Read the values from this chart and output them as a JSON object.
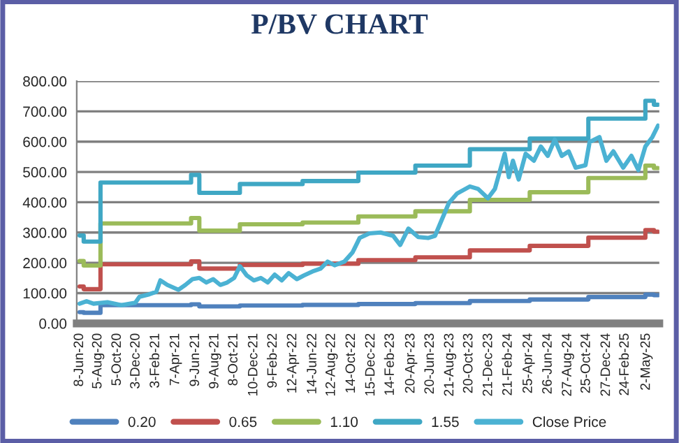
{
  "chart_data": {
    "type": "line",
    "title": "P/BV CHART",
    "series": [
      {
        "name": "0.20",
        "type": "step",
        "color": "#4f81bd",
        "x": [
          "2020-06-08",
          "2020-06-21",
          "2020-08-13",
          "2021-05-26",
          "2021-06-21",
          "2021-10-27",
          "2022-05-13",
          "2022-11-05",
          "2023-05-04",
          "2023-10-23",
          "2024-04-29",
          "2024-10-31",
          "2025-04-29",
          "2025-05-26",
          "2025-06-08"
        ],
        "values": [
          37,
          35,
          60,
          63,
          56,
          59,
          61,
          64,
          67,
          74,
          79,
          87,
          95,
          93,
          93
        ]
      },
      {
        "name": "0.65",
        "type": "step",
        "color": "#c0504d",
        "x": [
          "2020-06-08",
          "2020-06-21",
          "2020-08-13",
          "2021-05-26",
          "2021-06-21",
          "2021-10-27",
          "2022-05-13",
          "2022-11-05",
          "2023-05-04",
          "2023-10-23",
          "2024-04-29",
          "2024-10-31",
          "2025-04-29",
          "2025-05-26",
          "2025-06-08"
        ],
        "values": [
          122,
          113,
          195,
          205,
          181,
          193,
          197,
          209,
          218,
          241,
          256,
          283,
          308,
          303,
          303
        ]
      },
      {
        "name": "1.10",
        "type": "step",
        "color": "#9bbb59",
        "x": [
          "2020-06-08",
          "2020-06-21",
          "2020-08-13",
          "2021-05-26",
          "2021-06-21",
          "2021-10-27",
          "2022-05-13",
          "2022-11-05",
          "2023-05-04",
          "2023-10-23",
          "2024-04-29",
          "2024-10-31",
          "2025-04-29",
          "2025-05-26",
          "2025-06-08"
        ],
        "values": [
          206,
          191,
          330,
          348,
          306,
          327,
          333,
          353,
          370,
          408,
          433,
          480,
          521,
          513,
          513
        ]
      },
      {
        "name": "1.55",
        "type": "step",
        "color": "#3fa7c4",
        "x": [
          "2020-06-08",
          "2020-06-21",
          "2020-08-13",
          "2021-05-26",
          "2021-06-21",
          "2021-10-27",
          "2022-05-13",
          "2022-11-05",
          "2023-05-04",
          "2023-10-23",
          "2024-04-29",
          "2024-10-31",
          "2025-04-29",
          "2025-05-26",
          "2025-06-08"
        ],
        "values": [
          290,
          270,
          465,
          490,
          431,
          460,
          470,
          498,
          521,
          575,
          610,
          676,
          735,
          722,
          722
        ]
      },
      {
        "name": "Close Price",
        "color": "#4bb2d3",
        "x": [
          "2020-06-08",
          "2020-06-30",
          "2020-07-22",
          "2020-09-04",
          "2020-10-18",
          "2020-12-01",
          "2020-12-14",
          "2021-01-14",
          "2021-02-05",
          "2021-02-18",
          "2021-03-12",
          "2021-04-16",
          "2021-05-08",
          "2021-05-30",
          "2021-06-21",
          "2021-07-13",
          "2021-08-04",
          "2021-08-26",
          "2021-09-17",
          "2021-10-09",
          "2021-10-27",
          "2021-11-18",
          "2021-12-10",
          "2022-01-01",
          "2022-01-23",
          "2022-02-14",
          "2022-03-08",
          "2022-03-30",
          "2022-04-25",
          "2022-05-17",
          "2022-06-17",
          "2022-07-09",
          "2022-07-31",
          "2022-08-22",
          "2022-09-22",
          "2022-10-18",
          "2022-11-09",
          "2022-12-10",
          "2023-01-14",
          "2023-02-23",
          "2023-03-17",
          "2023-04-12",
          "2023-05-13",
          "2023-06-13",
          "2023-07-05",
          "2023-07-27",
          "2023-08-18",
          "2023-09-13",
          "2023-10-23",
          "2023-11-18",
          "2023-12-19",
          "2024-01-10",
          "2024-02-10",
          "2024-02-23",
          "2024-03-07",
          "2024-03-25",
          "2024-04-16",
          "2024-05-12",
          "2024-06-03",
          "2024-06-25",
          "2024-07-17",
          "2024-08-08",
          "2024-08-30",
          "2024-09-21",
          "2024-10-22",
          "2024-11-04",
          "2024-12-05",
          "2024-12-27",
          "2025-01-18",
          "2025-02-18",
          "2025-03-16",
          "2025-04-07",
          "2025-04-29",
          "2025-05-21",
          "2025-06-08"
        ],
        "values": [
          65,
          73,
          65,
          70,
          60,
          68,
          88,
          96,
          104,
          142,
          127,
          111,
          127,
          146,
          150,
          135,
          146,
          127,
          135,
          150,
          189,
          158,
          142,
          150,
          135,
          161,
          142,
          166,
          146,
          158,
          173,
          181,
          204,
          192,
          204,
          235,
          282,
          297,
          300,
          289,
          259,
          313,
          285,
          282,
          289,
          344,
          398,
          429,
          452,
          444,
          413,
          444,
          560,
          483,
          537,
          475,
          560,
          537,
          584,
          553,
          607,
          553,
          568,
          514,
          522,
          599,
          615,
          537,
          568,
          514,
          553,
          506,
          584,
          615,
          653
        ]
      }
    ],
    "xlim": [
      "2020-05-30",
      "2025-06-12"
    ],
    "xticks": [
      {
        "value": "2020-06-08",
        "label": "8-Jun-20"
      },
      {
        "value": "2020-08-05",
        "label": "5-Aug-20"
      },
      {
        "value": "2020-10-05",
        "label": "5-Oct-20"
      },
      {
        "value": "2020-12-03",
        "label": "3-Dec-20"
      },
      {
        "value": "2021-02-03",
        "label": "3-Feb-21"
      },
      {
        "value": "2021-04-07",
        "label": "7-Apr-21"
      },
      {
        "value": "2021-06-09",
        "label": "9-Jun-21"
      },
      {
        "value": "2021-08-09",
        "label": "9-Aug-21"
      },
      {
        "value": "2021-10-08",
        "label": "8-Oct-21"
      },
      {
        "value": "2021-12-10",
        "label": "10-Dec-21"
      },
      {
        "value": "2022-02-09",
        "label": "9-Feb-22"
      },
      {
        "value": "2022-04-12",
        "label": "12-Apr-22"
      },
      {
        "value": "2022-06-14",
        "label": "14-Jun-22"
      },
      {
        "value": "2022-08-12",
        "label": "12-Aug-22"
      },
      {
        "value": "2022-10-14",
        "label": "14-Oct-22"
      },
      {
        "value": "2022-12-15",
        "label": "15-Dec-22"
      },
      {
        "value": "2023-02-14",
        "label": "14-Feb-23"
      },
      {
        "value": "2023-04-20",
        "label": "20-Apr-23"
      },
      {
        "value": "2023-06-20",
        "label": "20-Jun-23"
      },
      {
        "value": "2023-08-21",
        "label": "21-Aug-23"
      },
      {
        "value": "2023-10-20",
        "label": "20-Oct-23"
      },
      {
        "value": "2023-12-21",
        "label": "21-Dec-23"
      },
      {
        "value": "2024-02-21",
        "label": "21-Feb-24"
      },
      {
        "value": "2024-04-25",
        "label": "25-Apr-24"
      },
      {
        "value": "2024-06-26",
        "label": "26-Jun-24"
      },
      {
        "value": "2024-08-27",
        "label": "27-Aug-24"
      },
      {
        "value": "2024-10-25",
        "label": "25-Oct-24"
      },
      {
        "value": "2024-12-27",
        "label": "27-Dec-24"
      },
      {
        "value": "2025-02-24",
        "label": "24-Feb-25"
      },
      {
        "value": "2025-05-02",
        "label": "2-May-25"
      }
    ],
    "ylim": [
      0,
      800
    ],
    "yticks": [
      {
        "value": 0,
        "label": "0.00"
      },
      {
        "value": 100,
        "label": "100.00"
      },
      {
        "value": 200,
        "label": "200.00"
      },
      {
        "value": 300,
        "label": "300.00"
      },
      {
        "value": 400,
        "label": "400.00"
      },
      {
        "value": 500,
        "label": "500.00"
      },
      {
        "value": 600,
        "label": "600.00"
      },
      {
        "value": 700,
        "label": "700.00"
      },
      {
        "value": 800,
        "label": "800.00"
      }
    ],
    "grid": "y",
    "legend": "bottom",
    "marker": "none",
    "line_style": "solid"
  }
}
